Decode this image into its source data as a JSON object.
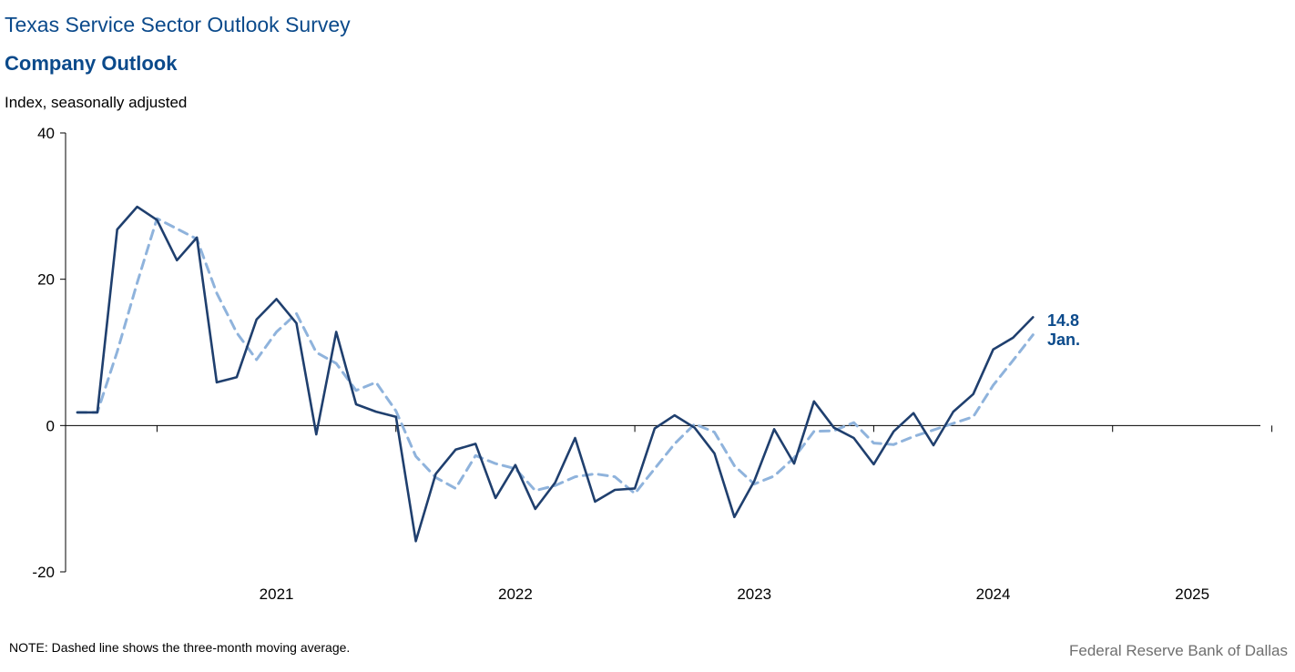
{
  "header": {
    "title": "Texas Service Sector Outlook Survey",
    "subtitle": "Company Outlook",
    "axis_note": "Index, seasonally adjusted"
  },
  "footer": {
    "note": "NOTE: Dashed line shows the three-month  moving average.",
    "source": "Federal Reserve Bank of Dallas"
  },
  "colors": {
    "series_main": "#1f3f6e",
    "series_ma": "#8fb3dc",
    "accent_text": "#0b4a8b",
    "axis": "#000000"
  },
  "chart_data": {
    "type": "line",
    "title": "Company Outlook",
    "ylabel": "Index, seasonally adjusted",
    "ylim": [
      -20,
      40
    ],
    "yticks": [
      -20,
      0,
      20,
      40
    ],
    "year_labels": [
      "2021",
      "2022",
      "2023",
      "2024",
      "2025"
    ],
    "x_start": "2020-09",
    "x_end": "2025-09",
    "grid": false,
    "series": [
      {
        "style": "solid",
        "values": [
          1.8,
          1.8,
          26.8,
          29.9,
          28.1,
          22.6,
          25.7,
          5.9,
          6.6,
          14.5,
          17.3,
          14.0,
          -1.2,
          12.8,
          2.9,
          1.9,
          1.2,
          -15.8,
          -6.6,
          -3.3,
          -2.5,
          -9.9,
          -5.4,
          -11.4,
          -7.8,
          -1.7,
          -10.4,
          -8.8,
          -8.6,
          -0.4,
          1.4,
          -0.3,
          -3.8,
          -12.5,
          -7.6,
          -0.5,
          -5.2,
          3.3,
          -0.3,
          -1.7,
          -5.3,
          -0.8,
          1.7,
          -2.7,
          1.9,
          4.3,
          10.4,
          12.0,
          14.8
        ]
      },
      {
        "style": "dashed",
        "values": [
          1.8,
          1.8,
          10.1,
          19.5,
          28.3,
          26.9,
          25.5,
          18.1,
          12.7,
          9.0,
          12.8,
          15.3,
          10.0,
          8.5,
          4.8,
          5.9,
          2.0,
          -4.2,
          -7.1,
          -8.6,
          -4.1,
          -5.2,
          -5.9,
          -8.9,
          -8.2,
          -7.0,
          -6.6,
          -7.0,
          -9.3,
          -5.9,
          -2.5,
          0.2,
          -0.9,
          -5.5,
          -8.0,
          -6.9,
          -4.4,
          -0.8,
          -0.7,
          0.4,
          -2.4,
          -2.6,
          -1.5,
          -0.6,
          0.3,
          1.2,
          5.5,
          8.9,
          12.4
        ]
      }
    ],
    "annotation": {
      "value": "14.8",
      "label": "Jan."
    }
  }
}
